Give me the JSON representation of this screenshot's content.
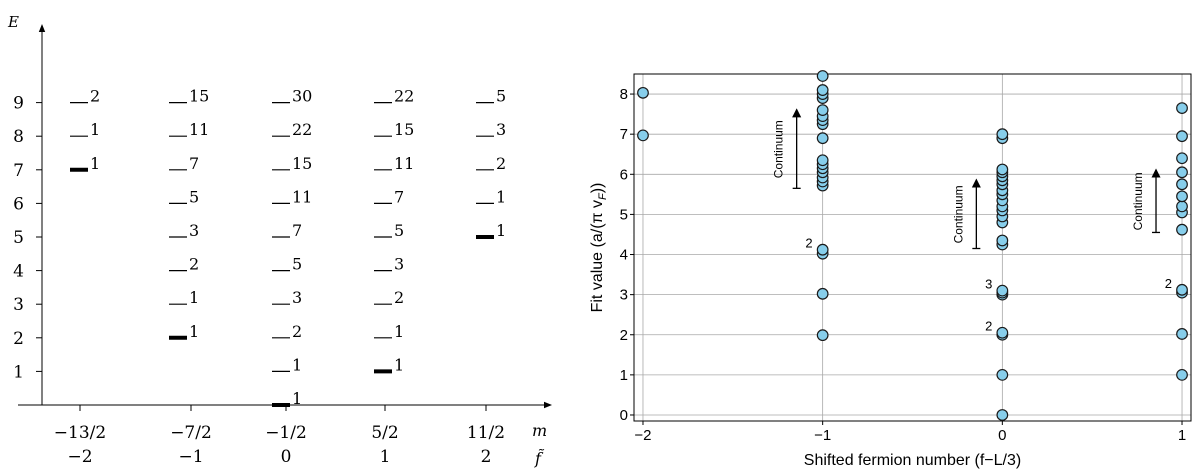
{
  "chart_data": [
    {
      "type": "scatter",
      "ylabel": "E",
      "x_tick_labels_top": [
        "−13/2",
        "−7/2",
        "−1/2",
        "5/2",
        "11/2"
      ],
      "x_tick_labels_bottom": [
        "−2",
        "−1",
        "0",
        "1",
        "2"
      ],
      "x_axis_symbol_top": "m",
      "x_axis_symbol_bottom": "f̃",
      "y_ticks": [
        "1",
        "2",
        "3",
        "4",
        "5",
        "6",
        "7",
        "8",
        "9"
      ],
      "ylim": [
        0,
        10
      ],
      "columns": [
        {
          "levels": [
            {
              "E": 7,
              "count": "1",
              "ground": true
            },
            {
              "E": 8,
              "count": "1"
            },
            {
              "E": 9,
              "count": "2"
            }
          ]
        },
        {
          "levels": [
            {
              "E": 2,
              "count": "1",
              "ground": true
            },
            {
              "E": 3,
              "count": "1"
            },
            {
              "E": 4,
              "count": "2"
            },
            {
              "E": 5,
              "count": "3"
            },
            {
              "E": 6,
              "count": "5"
            },
            {
              "E": 7,
              "count": "7"
            },
            {
              "E": 8,
              "count": "11"
            },
            {
              "E": 9,
              "count": "15"
            }
          ]
        },
        {
          "levels": [
            {
              "E": 0,
              "count": "1",
              "ground": true
            },
            {
              "E": 1,
              "count": "1"
            },
            {
              "E": 2,
              "count": "2"
            },
            {
              "E": 3,
              "count": "3"
            },
            {
              "E": 4,
              "count": "5"
            },
            {
              "E": 5,
              "count": "7"
            },
            {
              "E": 6,
              "count": "11"
            },
            {
              "E": 7,
              "count": "15"
            },
            {
              "E": 8,
              "count": "22"
            },
            {
              "E": 9,
              "count": "30"
            }
          ]
        },
        {
          "levels": [
            {
              "E": 1,
              "count": "1",
              "ground": true
            },
            {
              "E": 2,
              "count": "1"
            },
            {
              "E": 3,
              "count": "2"
            },
            {
              "E": 4,
              "count": "3"
            },
            {
              "E": 5,
              "count": "5"
            },
            {
              "E": 6,
              "count": "7"
            },
            {
              "E": 7,
              "count": "11"
            },
            {
              "E": 8,
              "count": "15"
            },
            {
              "E": 9,
              "count": "22"
            }
          ]
        },
        {
          "levels": [
            {
              "E": 5,
              "count": "1",
              "ground": true
            },
            {
              "E": 6,
              "count": "1"
            },
            {
              "E": 7,
              "count": "2"
            },
            {
              "E": 8,
              "count": "3"
            },
            {
              "E": 9,
              "count": "5"
            }
          ]
        }
      ]
    },
    {
      "type": "scatter",
      "xlabel": "Shifted fermion number (f−L/3)",
      "ylabel": "Fit value (a/(π v",
      "ylabel_sub": "F",
      "ylabel_end": "))",
      "xlim": [
        -2.05,
        1.05
      ],
      "ylim": [
        -0.15,
        8.5
      ],
      "x_ticks": [
        -2,
        -1,
        0,
        1
      ],
      "x_tick_labels": [
        "−2",
        "−1",
        "0",
        "1"
      ],
      "y_ticks": [
        0,
        1,
        2,
        3,
        4,
        5,
        6,
        7,
        8
      ],
      "grid": true,
      "marker_color": "#87ceeb",
      "points": [
        {
          "x": -2,
          "y": 6.97
        },
        {
          "x": -2,
          "y": 8.03
        },
        {
          "x": -1,
          "y": 1.99
        },
        {
          "x": -1,
          "y": 3.02
        },
        {
          "x": -1,
          "y": 4.02
        },
        {
          "x": -1,
          "y": 4.12
        },
        {
          "x": -1,
          "y": 5.72
        },
        {
          "x": -1,
          "y": 5.82
        },
        {
          "x": -1,
          "y": 5.92
        },
        {
          "x": -1,
          "y": 6.05
        },
        {
          "x": -1,
          "y": 6.15
        },
        {
          "x": -1,
          "y": 6.25
        },
        {
          "x": -1,
          "y": 6.35
        },
        {
          "x": -1,
          "y": 6.9
        },
        {
          "x": -1,
          "y": 7.25
        },
        {
          "x": -1,
          "y": 7.35
        },
        {
          "x": -1,
          "y": 7.45
        },
        {
          "x": -1,
          "y": 7.6
        },
        {
          "x": -1,
          "y": 7.9
        },
        {
          "x": -1,
          "y": 8.0
        },
        {
          "x": -1,
          "y": 8.1
        },
        {
          "x": -1,
          "y": 8.45
        },
        {
          "x": 0,
          "y": 0.0
        },
        {
          "x": 0,
          "y": 1.0
        },
        {
          "x": 0,
          "y": 2.0
        },
        {
          "x": 0,
          "y": 2.05
        },
        {
          "x": 0,
          "y": 3.0
        },
        {
          "x": 0,
          "y": 3.05
        },
        {
          "x": 0,
          "y": 3.1
        },
        {
          "x": 0,
          "y": 4.25
        },
        {
          "x": 0,
          "y": 4.35
        },
        {
          "x": 0,
          "y": 4.8
        },
        {
          "x": 0,
          "y": 4.95
        },
        {
          "x": 0,
          "y": 5.1
        },
        {
          "x": 0,
          "y": 5.2
        },
        {
          "x": 0,
          "y": 5.35
        },
        {
          "x": 0,
          "y": 5.5
        },
        {
          "x": 0,
          "y": 5.6
        },
        {
          "x": 0,
          "y": 5.75
        },
        {
          "x": 0,
          "y": 5.85
        },
        {
          "x": 0,
          "y": 5.95
        },
        {
          "x": 0,
          "y": 6.05
        },
        {
          "x": 0,
          "y": 6.12
        },
        {
          "x": 0,
          "y": 6.9
        },
        {
          "x": 0,
          "y": 7.0
        },
        {
          "x": 1,
          "y": 1.0
        },
        {
          "x": 1,
          "y": 2.02
        },
        {
          "x": 1,
          "y": 3.05
        },
        {
          "x": 1,
          "y": 3.12
        },
        {
          "x": 1,
          "y": 4.62
        },
        {
          "x": 1,
          "y": 5.05
        },
        {
          "x": 1,
          "y": 5.2
        },
        {
          "x": 1,
          "y": 5.45
        },
        {
          "x": 1,
          "y": 5.75
        },
        {
          "x": 1,
          "y": 6.05
        },
        {
          "x": 1,
          "y": 6.4
        },
        {
          "x": 1,
          "y": 6.95
        },
        {
          "x": 1,
          "y": 7.65
        }
      ],
      "annotations": [
        {
          "text": "2",
          "x": -1,
          "y": 4.12
        },
        {
          "text": "3",
          "x": 0,
          "y": 3.1
        },
        {
          "text": "2",
          "x": 0,
          "y": 2.05
        },
        {
          "text": "2",
          "x": 1,
          "y": 3.12
        }
      ],
      "continuum_arrows": [
        {
          "label": "Continuum",
          "x": -1,
          "y_from": 5.65,
          "y_to": 7.6
        },
        {
          "label": "Continuum",
          "x": 0,
          "y_from": 4.15,
          "y_to": 5.85
        },
        {
          "label": "Continuum",
          "x": 1,
          "y_from": 4.55,
          "y_to": 6.1
        }
      ]
    }
  ]
}
